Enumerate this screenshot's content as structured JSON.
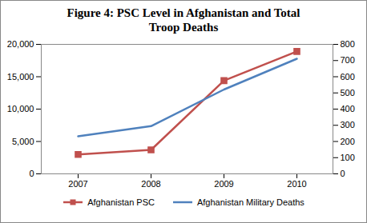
{
  "chart_data": {
    "type": "line",
    "title": "Figure 4: PSC Level in Afghanistan and Total Troop Deaths",
    "categories": [
      "2007",
      "2008",
      "2009",
      "2010"
    ],
    "series": [
      {
        "name": "Afghanistan PSC",
        "color": "#c0504d",
        "marker": "square",
        "values": [
          3000,
          3700,
          14400,
          18900
        ]
      },
      {
        "name": "Afghanistan Military Deaths",
        "color": "#4f81bd",
        "marker": "none",
        "axis": "y2",
        "values": [
          232,
          295,
          521,
          711
        ]
      }
    ],
    "ylim": [
      0,
      20000
    ],
    "yticks": [
      0,
      {
        "value": 5000,
        "label": "5,000"
      },
      {
        "value": 10000,
        "label": "10,000"
      },
      {
        "value": 15000,
        "label": "15,000"
      },
      {
        "value": 20000,
        "label": "20,000"
      }
    ],
    "y2lim": [
      0,
      800
    ],
    "y2ticks": [
      0,
      100,
      200,
      300,
      400,
      500,
      600,
      700,
      800
    ],
    "grid": false,
    "legend": "bottom"
  }
}
